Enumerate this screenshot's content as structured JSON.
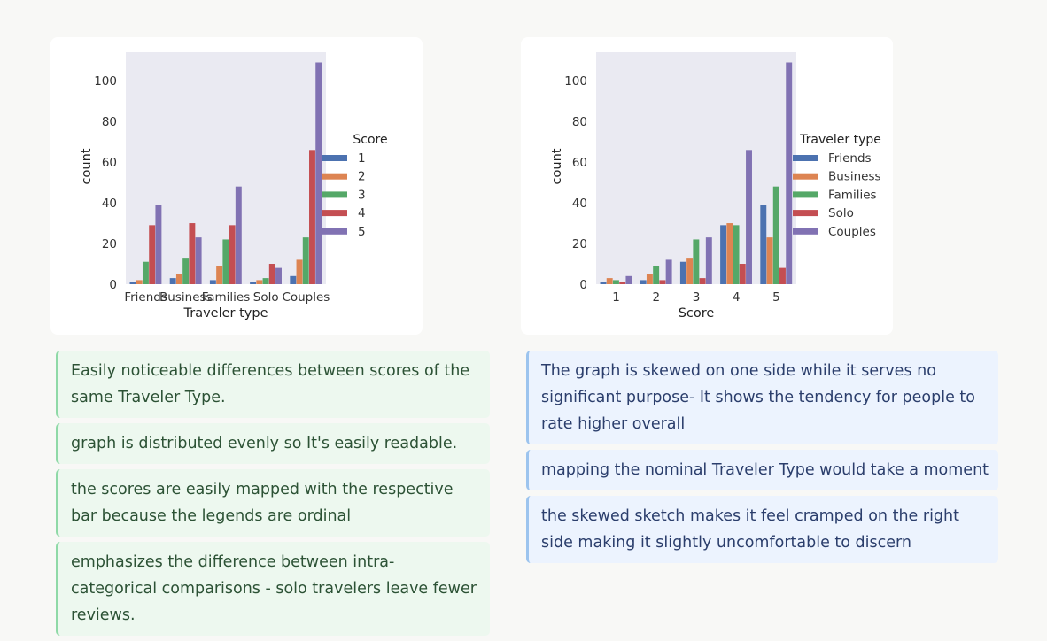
{
  "colors": {
    "series": [
      "#4c72b0",
      "#dd8452",
      "#55a868",
      "#c44e52",
      "#8172b3"
    ],
    "plot_bg": "#eaeaf2",
    "green_note_bg": "#edf8ef",
    "green_note_border": "#8fd9a7",
    "blue_note_bg": "#ecf3fe",
    "blue_note_border": "#9cc4ee"
  },
  "chart_data": [
    {
      "type": "bar",
      "title": "",
      "xlabel": "Traveler type",
      "ylabel": "count",
      "ylim": [
        0,
        114
      ],
      "yticks": [
        0,
        20,
        40,
        60,
        80,
        100
      ],
      "categories": [
        "Friends",
        "Business",
        "Families",
        "Solo",
        "Couples"
      ],
      "legend_title": "Score",
      "legend_position": "right-outside",
      "grid": false,
      "series": [
        {
          "name": "1",
          "values": [
            1,
            3,
            2,
            1,
            4
          ]
        },
        {
          "name": "2",
          "values": [
            2,
            5,
            9,
            2,
            12
          ]
        },
        {
          "name": "3",
          "values": [
            11,
            13,
            22,
            3,
            23
          ]
        },
        {
          "name": "4",
          "values": [
            29,
            30,
            29,
            10,
            66
          ]
        },
        {
          "name": "5",
          "values": [
            39,
            23,
            48,
            8,
            109
          ]
        }
      ]
    },
    {
      "type": "bar",
      "title": "",
      "xlabel": "Score",
      "ylabel": "count",
      "ylim": [
        0,
        114
      ],
      "yticks": [
        0,
        20,
        40,
        60,
        80,
        100
      ],
      "categories": [
        "1",
        "2",
        "3",
        "4",
        "5"
      ],
      "legend_title": "Traveler type",
      "legend_position": "right-outside",
      "grid": false,
      "series": [
        {
          "name": "Friends",
          "values": [
            1,
            2,
            11,
            29,
            39
          ]
        },
        {
          "name": "Business",
          "values": [
            3,
            5,
            13,
            30,
            23
          ]
        },
        {
          "name": "Families",
          "values": [
            2,
            9,
            22,
            29,
            48
          ]
        },
        {
          "name": "Solo",
          "values": [
            1,
            2,
            3,
            10,
            8
          ]
        },
        {
          "name": "Couples",
          "values": [
            4,
            12,
            23,
            66,
            109
          ]
        }
      ]
    }
  ],
  "notes_left": [
    "Easily noticeable differences between scores of the same Traveler Type.",
    "graph is distributed evenly so It's easily readable.",
    "the scores are easily mapped  with the respective bar because the legends are ordinal",
    "emphasizes the difference between intra-categorical comparisons - solo travelers leave fewer reviews."
  ],
  "notes_right": [
    "The graph is skewed on one side while it serves no significant purpose- It shows the tendency for people to rate higher overall",
    "mapping the nominal Traveler Type would take a moment",
    "the skewed sketch makes it feel cramped on the right side making it slightly uncomfortable to discern"
  ]
}
